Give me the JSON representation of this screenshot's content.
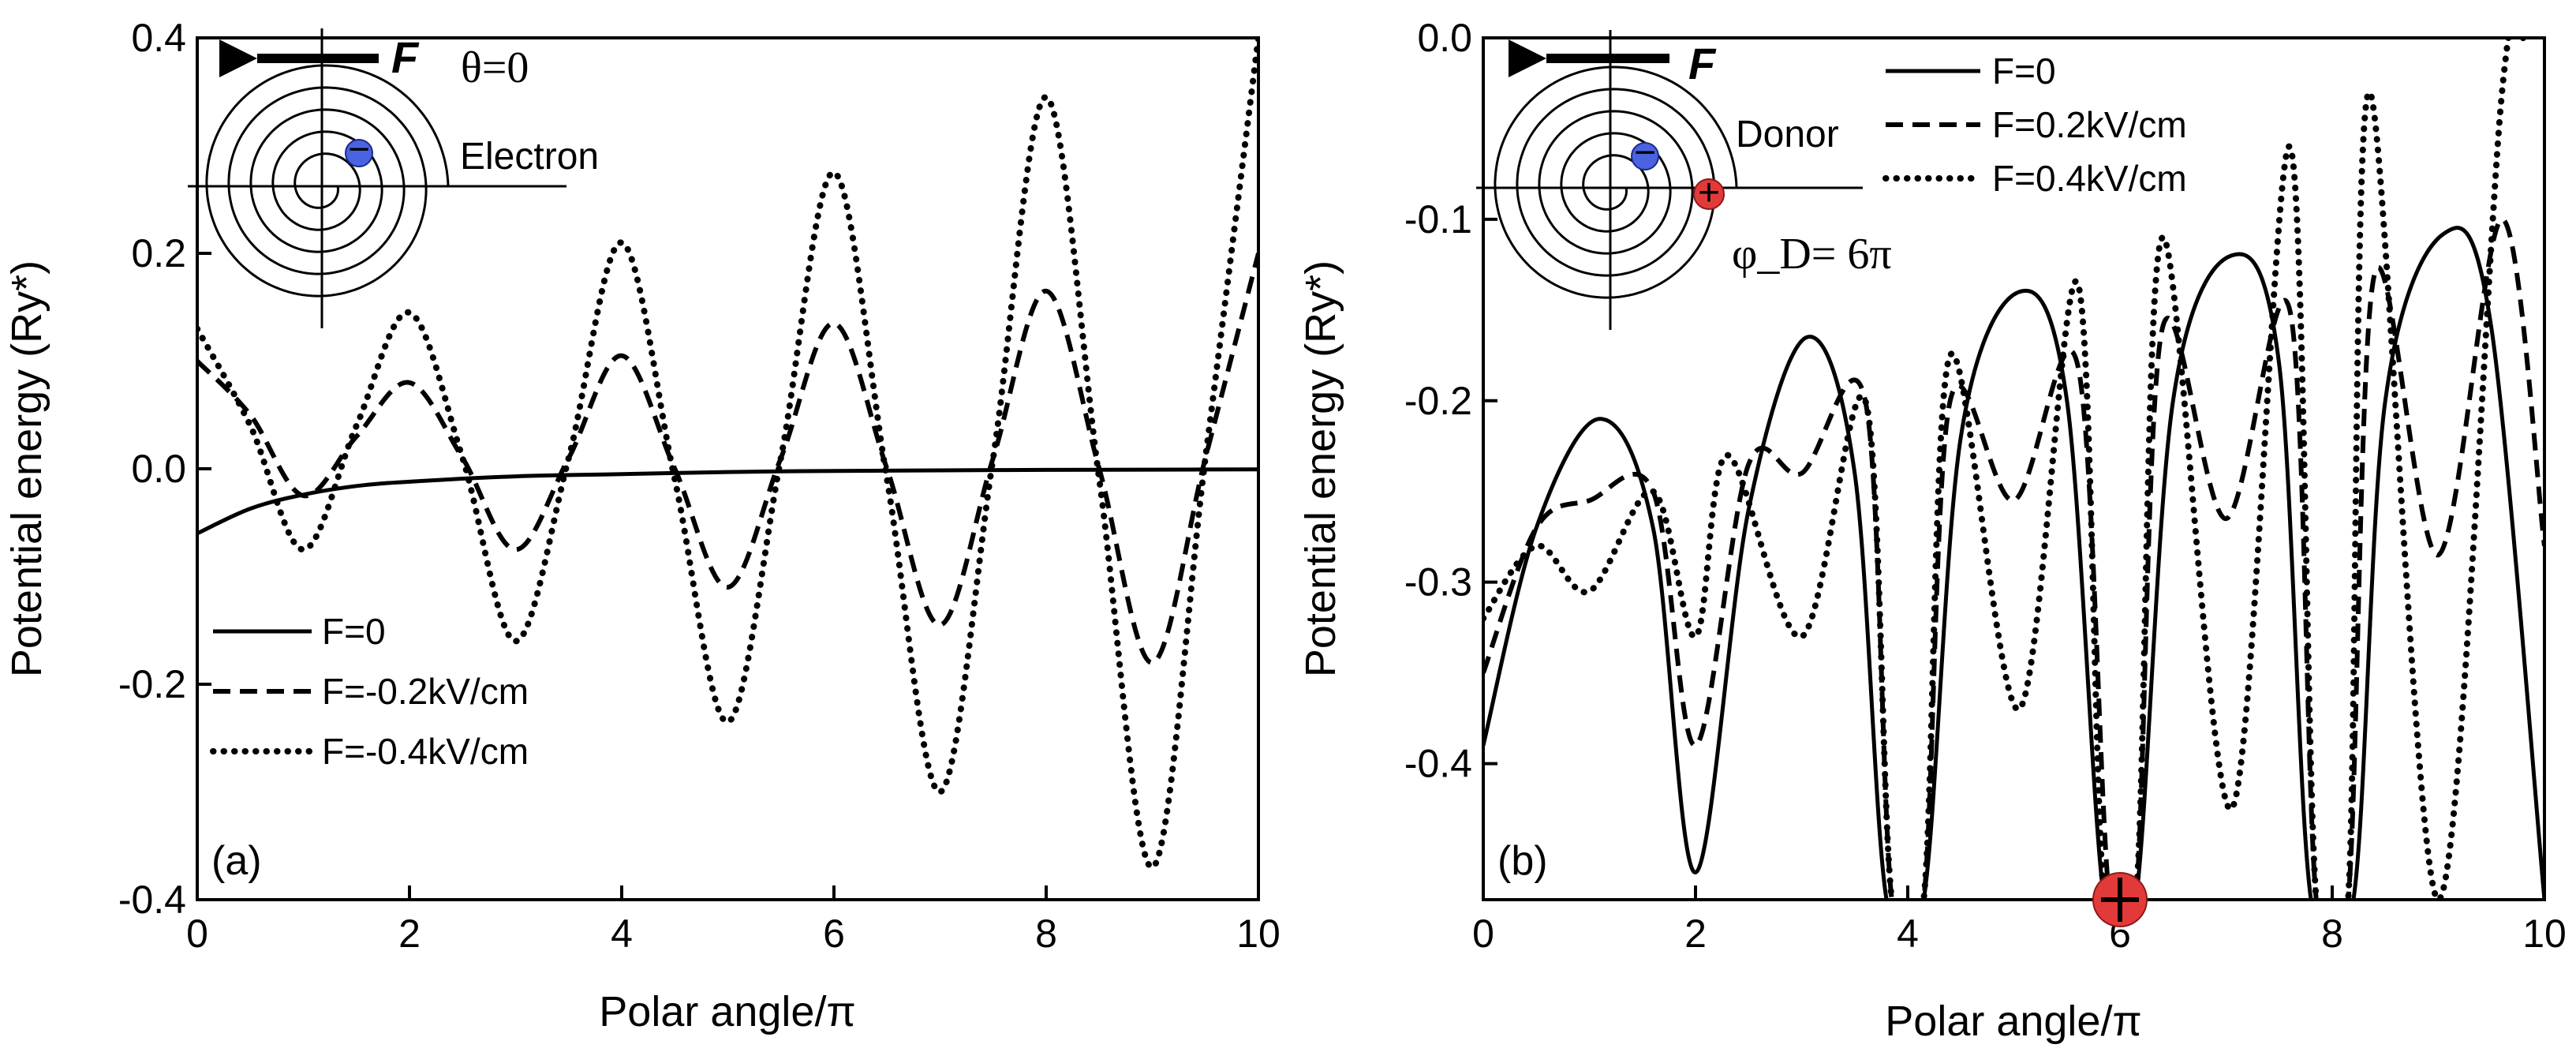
{
  "chart_data": [
    {
      "type": "line",
      "panel_label": "(a)",
      "xlabel": "Polar angle/π",
      "ylabel": "Potential energy (Ry*)",
      "xlim": [
        0,
        10
      ],
      "ylim": [
        -0.4,
        0.4
      ],
      "xticks": [
        "0",
        "2",
        "4",
        "6",
        "8",
        "10"
      ],
      "yticks": [
        "-0.4",
        "-0.2",
        "0.0",
        "0.2",
        "0.4"
      ],
      "annotations": {
        "force_label": "F",
        "theta": "θ=0",
        "particle": "Electron",
        "charge_sign": "−"
      },
      "legend": {
        "position": "bottom-left"
      },
      "series": [
        {
          "name": "F=0",
          "style": "solid",
          "x": [
            0,
            0.5,
            1,
            1.5,
            2,
            3,
            4,
            5,
            6,
            7,
            8,
            9,
            10
          ],
          "y": [
            -0.06,
            -0.037,
            -0.024,
            -0.016,
            -0.012,
            -0.007,
            -0.005,
            -0.003,
            -0.002,
            -0.0015,
            -0.001,
            -0.0008,
            -0.0005
          ]
        },
        {
          "name": "F=-0.2kV/cm",
          "style": "dashed",
          "x": [
            0,
            0.5,
            1,
            1.5,
            2,
            2.5,
            3,
            3.5,
            4,
            4.5,
            5,
            5.5,
            6,
            6.5,
            7,
            7.5,
            8,
            8.5,
            9,
            9.5,
            10
          ],
          "y": [
            0.1,
            0.05,
            -0.025,
            0.03,
            0.08,
            0.01,
            -0.075,
            0.01,
            0.105,
            0.0,
            -0.11,
            0.01,
            0.135,
            0.0,
            -0.145,
            0.01,
            0.165,
            0.0,
            -0.18,
            0.01,
            0.2
          ]
        },
        {
          "name": "F=-0.4kV/cm",
          "style": "dotted",
          "x": [
            0,
            0.5,
            1,
            1.5,
            2,
            2.5,
            3,
            3.5,
            4,
            4.5,
            5,
            5.5,
            6,
            6.5,
            7,
            7.5,
            8,
            8.5,
            9,
            9.5,
            10
          ],
          "y": [
            0.13,
            0.04,
            -0.075,
            0.04,
            0.145,
            0.01,
            -0.16,
            0.01,
            0.21,
            -0.01,
            -0.235,
            0.01,
            0.275,
            -0.01,
            -0.3,
            0.01,
            0.345,
            -0.01,
            -0.37,
            0.01,
            0.4
          ]
        }
      ]
    },
    {
      "type": "line",
      "panel_label": "(b)",
      "xlabel": "Polar angle/π",
      "ylabel": "Potential energy (Ry*)",
      "xlim": [
        0,
        10
      ],
      "ylim": [
        -0.475,
        0.0
      ],
      "xticks": [
        "0",
        "2",
        "4",
        "6",
        "8",
        "10"
      ],
      "yticks": [
        "-0.4",
        "-0.3",
        "-0.2",
        "-0.1",
        "0.0"
      ],
      "annotations": {
        "force_label": "F",
        "particle": "Donor",
        "donor_angle": "φ_D= 6π",
        "electron_sign": "−",
        "donor_sign": "+"
      },
      "legend": {
        "position": "top-center"
      },
      "series": [
        {
          "name": "F=0",
          "style": "solid",
          "x": [
            0,
            0.5,
            1.1,
            1.6,
            2.0,
            2.5,
            3.05,
            3.5,
            3.8,
            4.15,
            4.5,
            5.05,
            5.5,
            5.85,
            6.15,
            6.5,
            7.05,
            7.5,
            7.8,
            8.2,
            8.5,
            9.05,
            9.5,
            10
          ],
          "y": [
            -0.39,
            -0.27,
            -0.21,
            -0.27,
            -0.46,
            -0.26,
            -0.165,
            -0.24,
            -0.475,
            -0.475,
            -0.22,
            -0.14,
            -0.2,
            -0.475,
            -0.475,
            -0.2,
            -0.12,
            -0.18,
            -0.475,
            -0.475,
            -0.2,
            -0.108,
            -0.16,
            -0.475
          ]
        },
        {
          "name": "F=0.2kV/cm",
          "style": "dashed",
          "x": [
            0,
            0.5,
            1,
            1.6,
            2.0,
            2.5,
            3.0,
            3.6,
            3.85,
            4.15,
            4.4,
            5.0,
            5.6,
            5.9,
            6.15,
            6.4,
            7.0,
            7.6,
            7.85,
            8.15,
            8.4,
            9.0,
            9.6,
            10
          ],
          "y": [
            -0.35,
            -0.27,
            -0.255,
            -0.25,
            -0.39,
            -0.235,
            -0.24,
            -0.2,
            -0.475,
            -0.475,
            -0.2,
            -0.255,
            -0.18,
            -0.475,
            -0.475,
            -0.16,
            -0.265,
            -0.15,
            -0.475,
            -0.475,
            -0.13,
            -0.285,
            -0.1,
            -0.28
          ]
        },
        {
          "name": "F=0.4kV/cm",
          "style": "dotted",
          "x": [
            0,
            0.5,
            1.0,
            1.6,
            2.0,
            2.3,
            3.0,
            3.6,
            3.85,
            4.15,
            4.4,
            5.05,
            5.6,
            5.85,
            6.15,
            6.4,
            7.05,
            7.6,
            7.85,
            8.15,
            8.35,
            9.0,
            9.6,
            9.8
          ],
          "y": [
            -0.32,
            -0.28,
            -0.305,
            -0.25,
            -0.33,
            -0.23,
            -0.33,
            -0.2,
            -0.475,
            -0.475,
            -0.175,
            -0.37,
            -0.135,
            -0.475,
            -0.475,
            -0.11,
            -0.425,
            -0.06,
            -0.475,
            -0.475,
            -0.03,
            -0.475,
            -0.03,
            0.0
          ]
        }
      ]
    }
  ]
}
